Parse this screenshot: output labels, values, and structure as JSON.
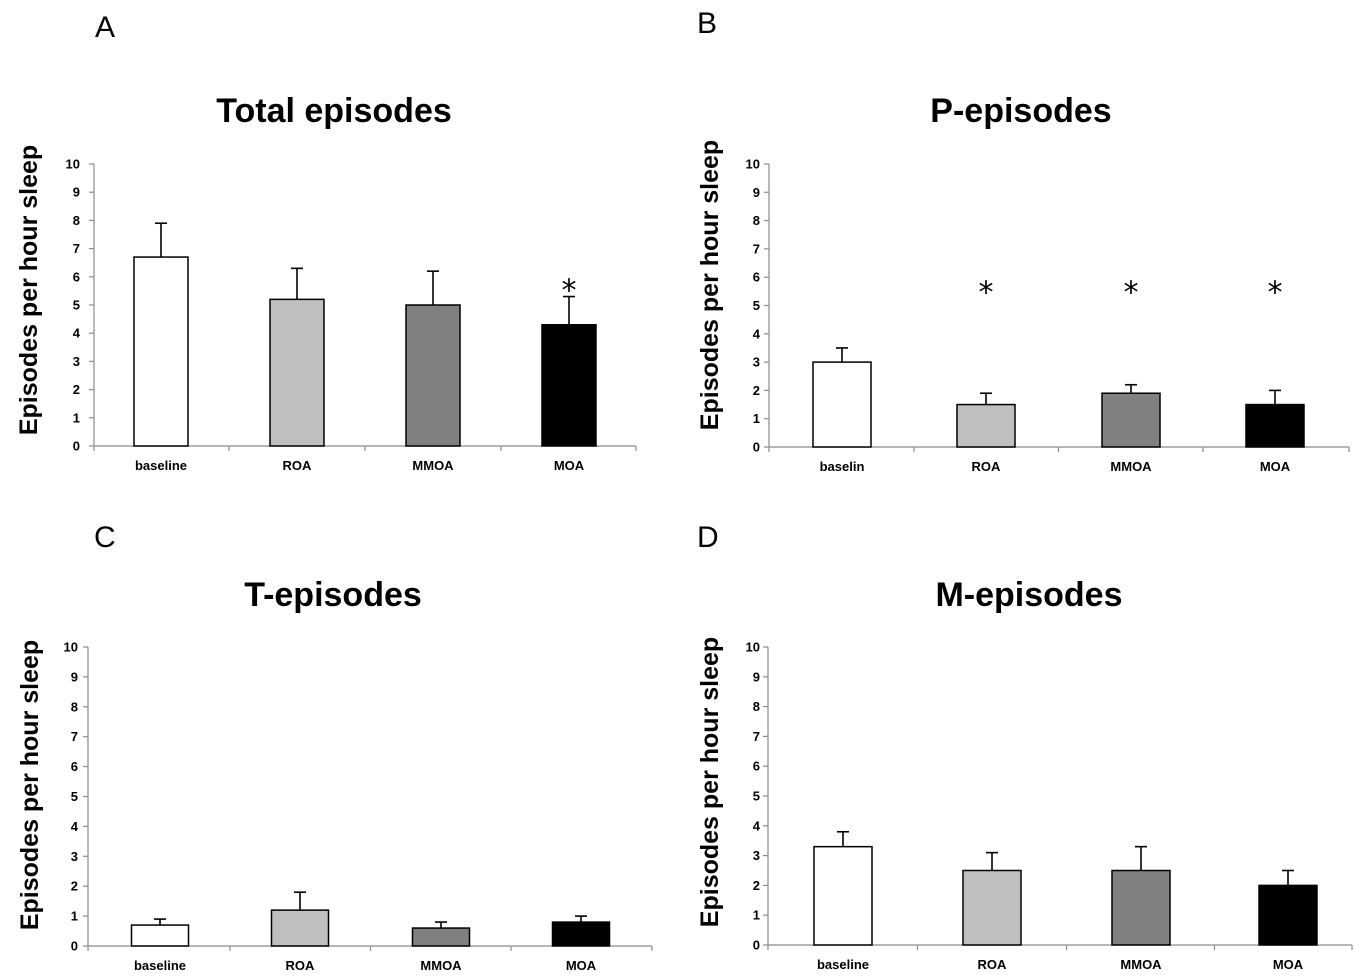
{
  "chart_data": [
    {
      "type": "bar",
      "panel": "A",
      "title": "Total episodes",
      "ylabel": "Episodes per hour sleep",
      "xlabel": "",
      "ylim": [
        0,
        10
      ],
      "yticks": [
        "0",
        "1",
        "2",
        "3",
        "4",
        "5",
        "6",
        "7",
        "8",
        "9",
        "10"
      ],
      "categories": [
        "baseline",
        "ROA",
        "MMOA",
        "MOA"
      ],
      "values": [
        6.7,
        5.2,
        5.0,
        4.3
      ],
      "errors": [
        1.2,
        1.1,
        1.2,
        1.0
      ],
      "significant": [
        false,
        false,
        false,
        true
      ],
      "significance_mark": "*",
      "bar_colors": [
        "#ffffff",
        "#bfbfbf",
        "#808080",
        "#000000"
      ],
      "grid": false
    },
    {
      "type": "bar",
      "panel": "B",
      "title": "P-episodes",
      "ylabel": "Episodes per hour sleep",
      "xlabel": "",
      "ylim": [
        0,
        10
      ],
      "yticks": [
        "0",
        "1",
        "2",
        "3",
        "4",
        "5",
        "6",
        "7",
        "8",
        "9",
        "10"
      ],
      "categories": [
        "baselin",
        "ROA",
        "MMOA",
        "MOA"
      ],
      "values": [
        3.0,
        1.5,
        1.9,
        1.5
      ],
      "errors": [
        0.5,
        0.4,
        0.3,
        0.5
      ],
      "significant": [
        false,
        true,
        true,
        true
      ],
      "significance_mark": "*",
      "bar_colors": [
        "#ffffff",
        "#bfbfbf",
        "#808080",
        "#000000"
      ],
      "grid": false
    },
    {
      "type": "bar",
      "panel": "C",
      "title": "T-episodes",
      "ylabel": "Episodes per hour sleep",
      "xlabel": "",
      "ylim": [
        0,
        10
      ],
      "yticks": [
        "0",
        "1",
        "2",
        "3",
        "4",
        "5",
        "6",
        "7",
        "8",
        "9",
        "10"
      ],
      "categories": [
        "baseline",
        "ROA",
        "MMOA",
        "MOA"
      ],
      "values": [
        0.7,
        1.2,
        0.6,
        0.8
      ],
      "errors": [
        0.2,
        0.6,
        0.2,
        0.2
      ],
      "significant": [
        false,
        false,
        false,
        false
      ],
      "significance_mark": "*",
      "bar_colors": [
        "#ffffff",
        "#bfbfbf",
        "#808080",
        "#000000"
      ],
      "grid": false
    },
    {
      "type": "bar",
      "panel": "D",
      "title": "M-episodes",
      "ylabel": "Episodes per hour sleep",
      "xlabel": "",
      "ylim": [
        0,
        10
      ],
      "yticks": [
        "0",
        "1",
        "2",
        "3",
        "4",
        "5",
        "6",
        "7",
        "8",
        "9",
        "10"
      ],
      "categories": [
        "baseline",
        "ROA",
        "MMOA",
        "MOA"
      ],
      "values": [
        3.3,
        2.5,
        2.5,
        2.0
      ],
      "errors": [
        0.5,
        0.6,
        0.8,
        0.5
      ],
      "significant": [
        false,
        false,
        false,
        false
      ],
      "significance_mark": "*",
      "bar_colors": [
        "#ffffff",
        "#bfbfbf",
        "#808080",
        "#000000"
      ],
      "grid": false
    }
  ]
}
